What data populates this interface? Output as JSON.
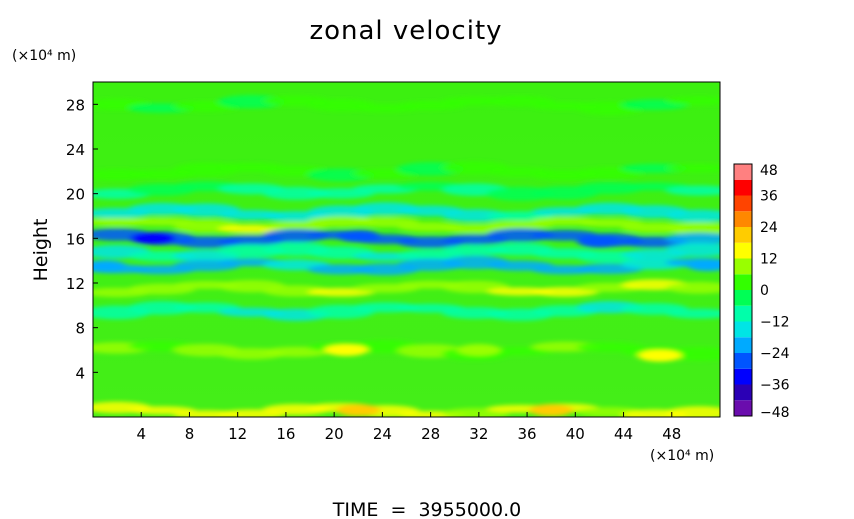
{
  "chart_data": {
    "type": "heatmap",
    "title": "zonal velocity",
    "ylabel": "Height",
    "y_unit": "(×10⁴ m)",
    "x_unit": "(×10⁴ m)",
    "footer": "TIME  =  3955000.0",
    "xlim": [
      0,
      52
    ],
    "ylim": [
      0,
      30
    ],
    "x_ticks": [
      4,
      8,
      12,
      16,
      20,
      24,
      28,
      32,
      36,
      40,
      44,
      48
    ],
    "y_ticks": [
      4,
      8,
      12,
      16,
      20,
      24,
      28
    ],
    "colorbar": {
      "ticks": [
        48,
        36,
        24,
        12,
        0,
        -12,
        -24,
        -36,
        -48
      ],
      "tick_labels": [
        "48",
        "36",
        "24",
        "12",
        "0",
        "−12",
        "−24",
        "−36",
        "−48"
      ],
      "range": [
        -48,
        48
      ],
      "colors": [
        "#6a0dad",
        "#2b00b5",
        "#0000ff",
        "#0055ff",
        "#00aaff",
        "#00e5e5",
        "#00ffaa",
        "#00ff55",
        "#33ff00",
        "#99ff00",
        "#ffff00",
        "#ffcc00",
        "#ff8800",
        "#ff4400",
        "#ff0000",
        "#ff8080"
      ]
    },
    "field_features": [
      {
        "y": 28.0,
        "value": 2
      },
      {
        "y": 22.0,
        "value": 2
      },
      {
        "y": 20.3,
        "value": -6
      },
      {
        "y": 18.3,
        "value": -14
      },
      {
        "y": 17.2,
        "value": 10
      },
      {
        "y": 16.0,
        "value": -26
      },
      {
        "y": 14.7,
        "value": -12
      },
      {
        "y": 13.5,
        "value": -20
      },
      {
        "y": 11.5,
        "value": 12
      },
      {
        "y": 9.5,
        "value": -10
      },
      {
        "y": 6.0,
        "value": 6
      },
      {
        "y": 0.5,
        "value": 14
      }
    ]
  }
}
